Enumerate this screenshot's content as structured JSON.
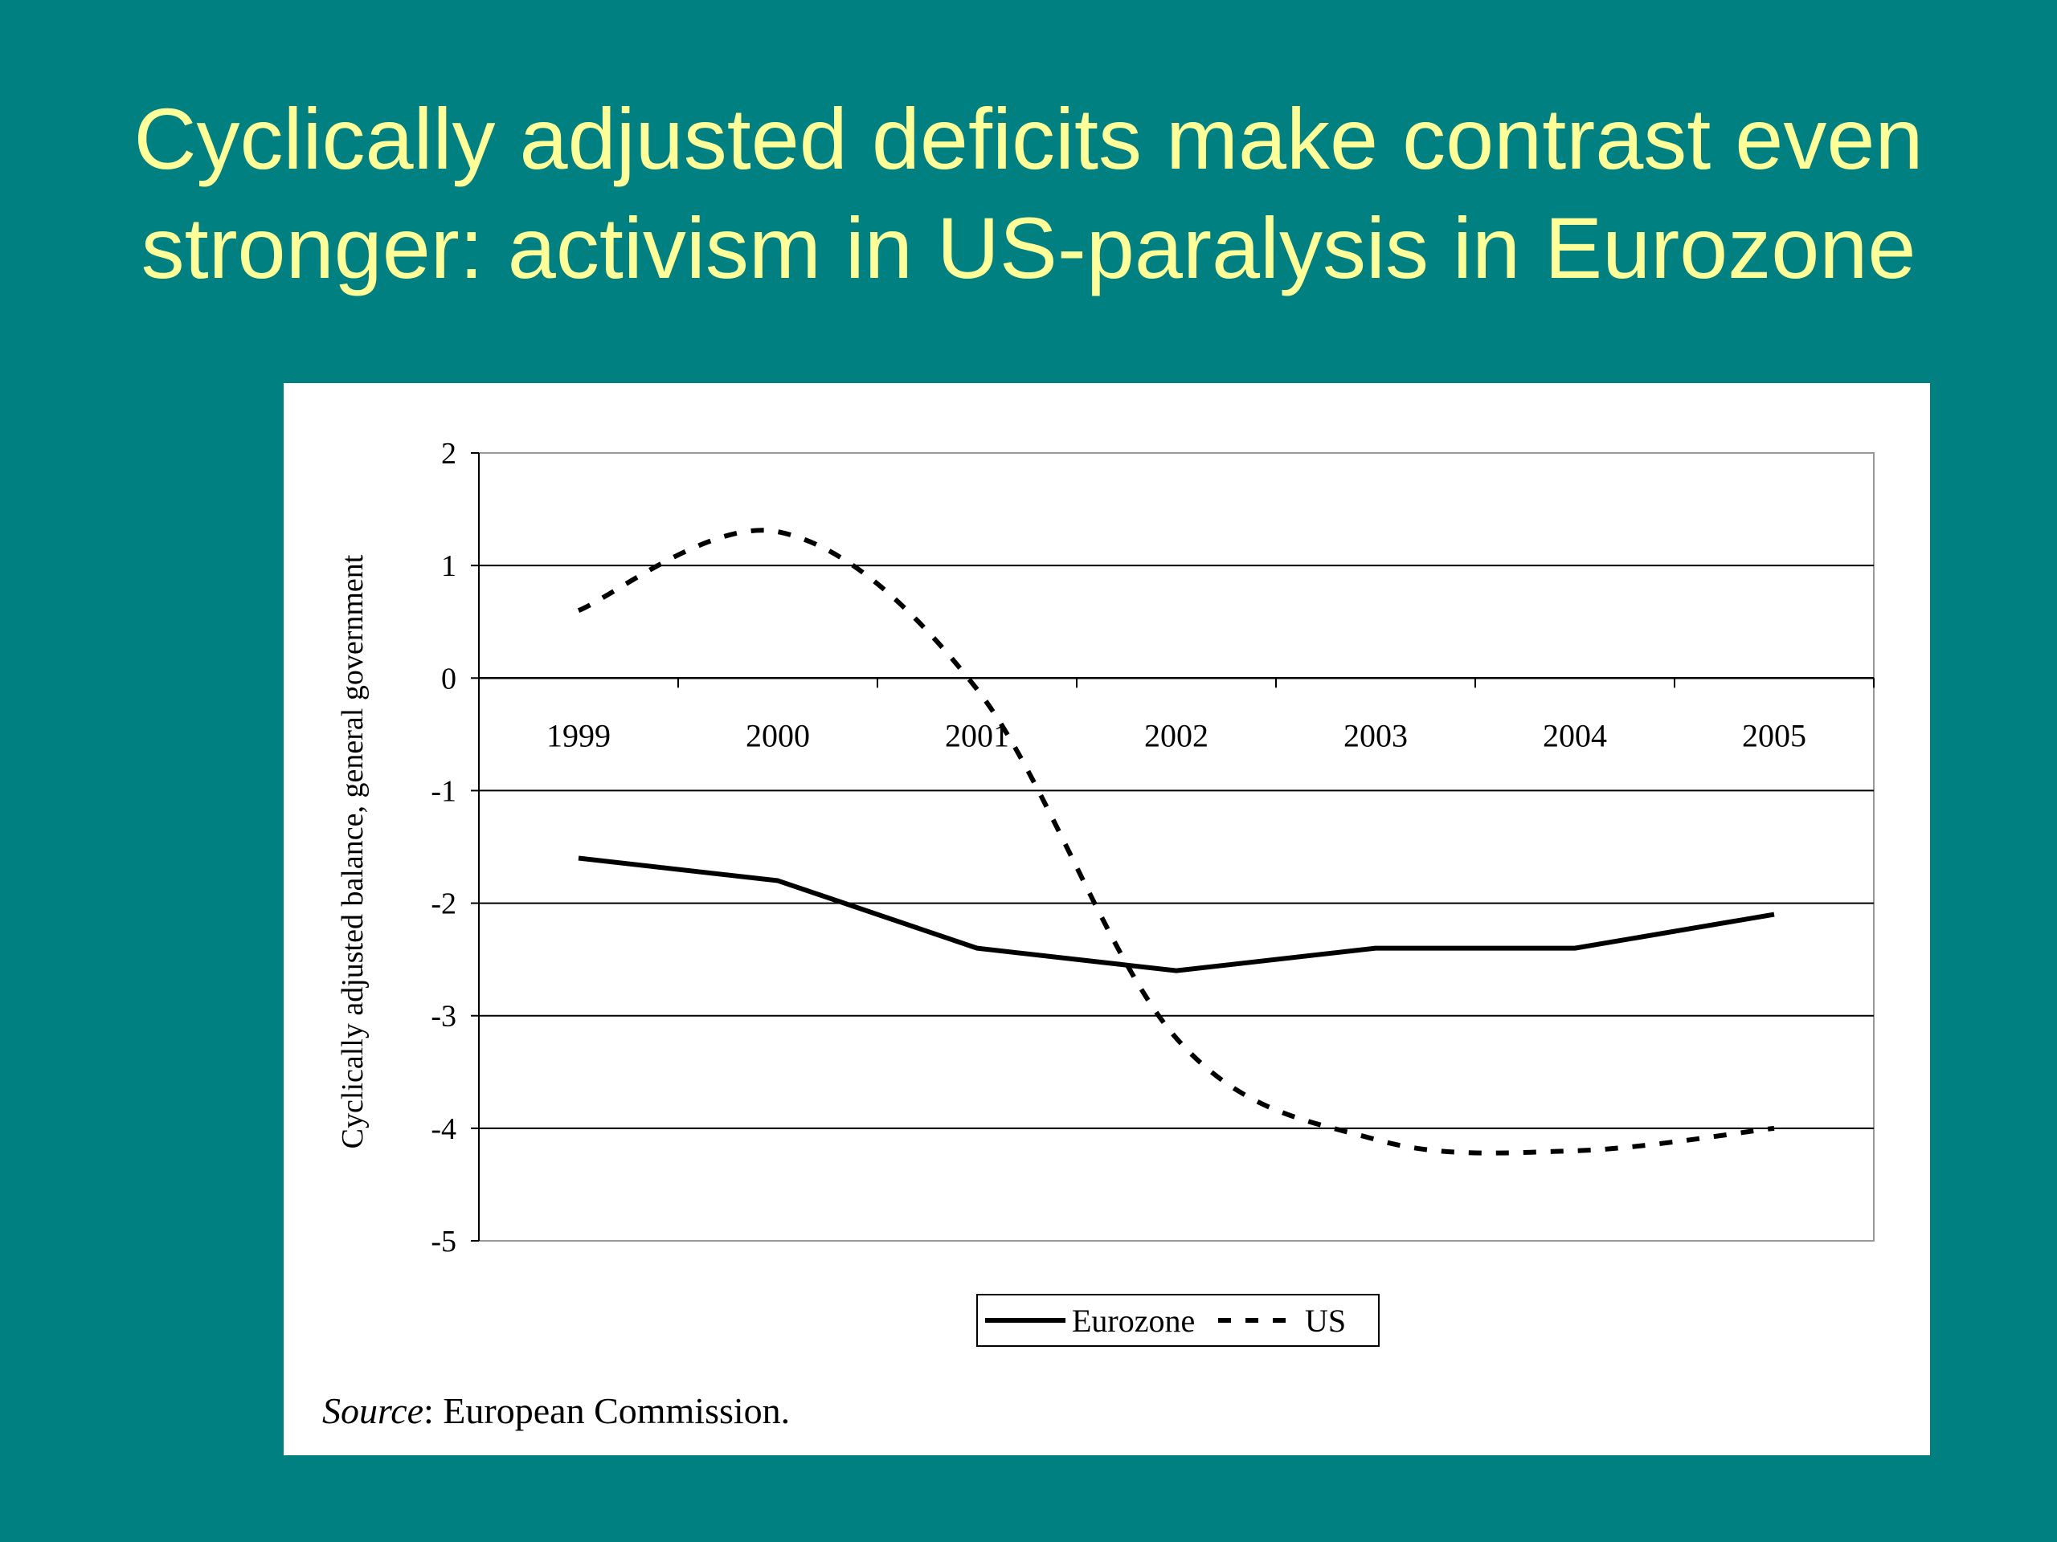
{
  "slide": {
    "title_line1": "Cyclically adjusted deficits make contrast even",
    "title_line2": "stronger: activism in US-paralysis in Eurozone",
    "background_color": "#008080",
    "title_color": "#ffff99"
  },
  "source": {
    "label": "Source",
    "text": ": European Commission."
  },
  "chart_data": {
    "type": "line",
    "title": "",
    "xlabel": "",
    "ylabel": "Cyclically adjusted balance, general government",
    "x": [
      "1999",
      "2000",
      "2001",
      "2002",
      "2003",
      "2004",
      "2005"
    ],
    "ylim": [
      -5,
      2
    ],
    "yticks": [
      "2",
      "1",
      "0",
      "-1",
      "-2",
      "-3",
      "-4",
      "-5"
    ],
    "grid": true,
    "legend_position": "bottom",
    "series": [
      {
        "name": "Eurozone",
        "style": "solid",
        "color": "#000000",
        "values": [
          -1.6,
          -1.8,
          -2.4,
          -2.6,
          -2.4,
          -2.4,
          -2.1
        ]
      },
      {
        "name": "US",
        "style": "dashed",
        "color": "#000000",
        "values": [
          0.6,
          1.3,
          -0.1,
          -3.2,
          -4.1,
          -4.2,
          -4.0
        ]
      }
    ]
  }
}
